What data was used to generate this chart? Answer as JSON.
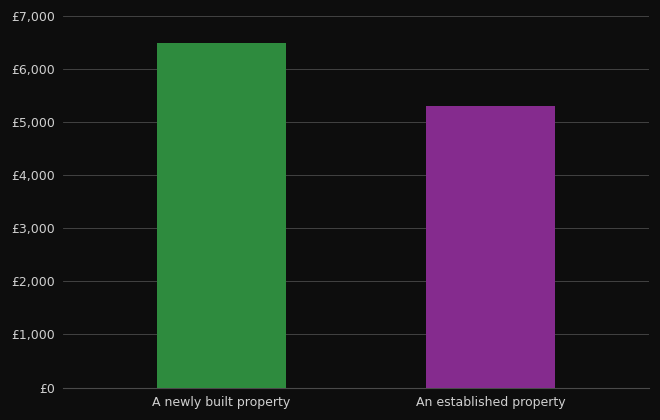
{
  "categories": [
    "A newly built property",
    "An established property"
  ],
  "values": [
    6500,
    5300
  ],
  "bar_colors": [
    "#2e8b3e",
    "#852b8e"
  ],
  "background_color": "#0d0d0d",
  "text_color": "#d0d0d0",
  "grid_color": "#4a4a4a",
  "ylim": [
    0,
    7000
  ],
  "ytick_step": 1000,
  "bar_width": 0.22,
  "x_positions": [
    0.27,
    0.73
  ],
  "xlim": [
    0,
    1
  ],
  "figsize": [
    6.6,
    4.2
  ],
  "dpi": 100,
  "xlabel_fontsize": 9,
  "ylabel_fontsize": 9
}
